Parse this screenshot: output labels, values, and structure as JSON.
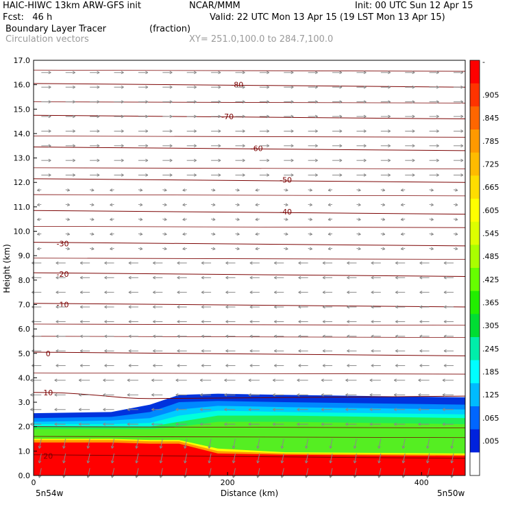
{
  "header": {
    "model": "HAIC-HIWC 13km ARW-GFS init",
    "org": "NCAR/MMM",
    "init": "Init: 00 UTC Sun 12 Apr 15",
    "fcst": "Fcst:   46 h",
    "valid": "Valid: 22 UTC Mon 13 Apr 15 (19 LST Mon 13 Apr 15)",
    "field": "Boundary Layer Tracer",
    "units": "(fraction)",
    "vectors": "Circulation vectors",
    "xy": "XY= 251.0,100.0 to 284.7,100.0"
  },
  "chart_data": {
    "type": "heatmap",
    "title": "Boundary Layer Tracer",
    "ylabel": "Height (km)",
    "xlabel": "Distance (km)",
    "ylim": [
      0,
      17
    ],
    "xlim": [
      0,
      445
    ],
    "yticks": [
      "0.0",
      "1.0",
      "2.0",
      "3.0",
      "4.0",
      "5.0",
      "6.0",
      "7.0",
      "8.0",
      "9.0",
      "10.0",
      "11.0",
      "12.0",
      "13.0",
      "14.0",
      "15.0",
      "16.0",
      "17.0"
    ],
    "xticks": [
      {
        "value": 0,
        "label": "0"
      },
      {
        "value": 200,
        "label": "200"
      },
      {
        "value": 400,
        "label": "400"
      }
    ],
    "x_end_labels": {
      "left": "5n54w",
      "right": "5n50w"
    },
    "colorbar": {
      "labels": [
        "-",
        ".905",
        ".845",
        ".785",
        ".725",
        ".665",
        ".605",
        ".545",
        ".485",
        ".425",
        ".365",
        ".305",
        ".245",
        ".185",
        ".125",
        ".065",
        ".005"
      ],
      "colors": [
        "#ff0000",
        "#ff3300",
        "#ff6600",
        "#ff9900",
        "#ffbb00",
        "#ffdd00",
        "#ffff00",
        "#ddff00",
        "#aaff00",
        "#66ff00",
        "#22ee00",
        "#00dd33",
        "#00eeaa",
        "#00ffff",
        "#00bbff",
        "#0066ff",
        "#0022dd",
        "#ffffff"
      ]
    },
    "tracer_layers": [
      {
        "level": "0.005",
        "color": "#ffffff"
      },
      {
        "level": "0.065",
        "color": "#0033dd"
      },
      {
        "level": "0.125",
        "color": "#0088ff"
      },
      {
        "level": "0.185",
        "color": "#00ccff"
      },
      {
        "level": "0.245",
        "color": "#00ffdd"
      },
      {
        "level": "0.305",
        "color": "#22ee55"
      },
      {
        "level": "0.365",
        "color": "#55ee22"
      },
      {
        "level": "0.545",
        "color": "#ffff00"
      },
      {
        "level": "0.665",
        "color": "#ff9900"
      },
      {
        "level": "0.905",
        "color": "#ff0000"
      }
    ],
    "temperature_contours": [
      {
        "label": "-80",
        "y": 16.0
      },
      {
        "label": "-70",
        "y": 14.7
      },
      {
        "label": "-60",
        "y": 13.4
      },
      {
        "label": "-50",
        "y": 12.1
      },
      {
        "label": "-40",
        "y": 10.8
      },
      {
        "label": "-30",
        "y": 9.5
      },
      {
        "label": "-20",
        "y": 8.25
      },
      {
        "label": "-10",
        "y": 7.0
      },
      {
        "label": "0",
        "y": 5.0
      },
      {
        "label": "10",
        "y": 3.4
      },
      {
        "label": "20",
        "y": 0.8
      }
    ]
  }
}
